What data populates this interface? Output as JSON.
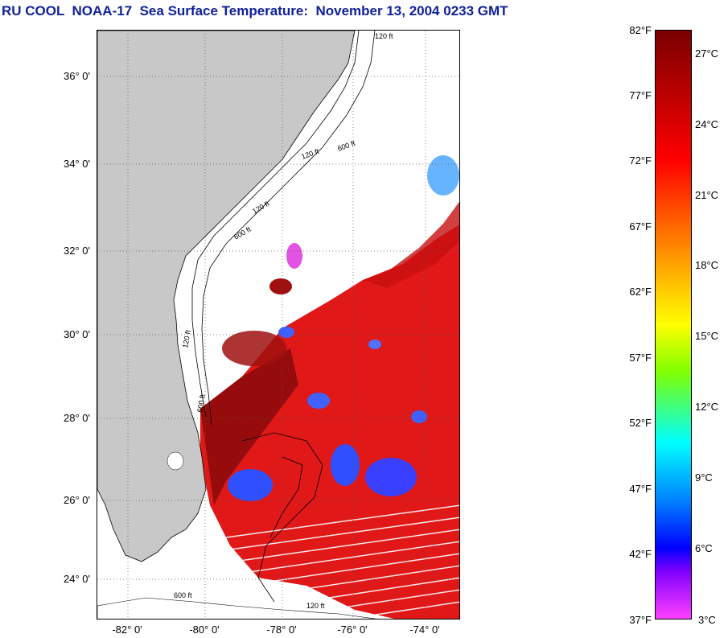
{
  "title": "RU COOL  NOAA-17  Sea Surface Temperature:  November 13, 2004 0233 GMT",
  "map": {
    "lat_labels": [
      "36° 0'",
      "34° 0'",
      "32° 0'",
      "30° 0'",
      "28° 0'",
      "26° 0'",
      "24° 0'"
    ],
    "lon_labels": [
      "-82° 0'",
      "-80° 0'",
      "-78° 0'",
      "-76° 0'",
      "-74° 0'"
    ],
    "depth_labels": [
      "120 ft",
      "600 ft",
      "120 ft",
      "600 ft",
      "120 ft",
      "600 ft",
      "120 ft",
      "600 ft",
      "120 ft"
    ],
    "colors": {
      "land": "#c8c8c8",
      "no_data": "#ffffff",
      "warm": "#e01010",
      "dark_red": "#8a0a0a",
      "cool_blue": "#3050ff",
      "magenta": "#e040e0"
    }
  },
  "colorbar": {
    "fahrenheit_labels": [
      "82°F",
      "77°F",
      "72°F",
      "67°F",
      "62°F",
      "57°F",
      "52°F",
      "47°F",
      "42°F",
      "37°F"
    ],
    "celsius_labels": [
      "27°C",
      "24°C",
      "21°C",
      "18°C",
      "15°C",
      "12°C",
      "9°C",
      "6°C",
      "3°C"
    ]
  }
}
